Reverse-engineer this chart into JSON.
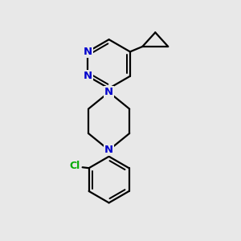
{
  "background_color": "#e8e8e8",
  "bond_color": "#000000",
  "N_color": "#0000cc",
  "Cl_color": "#00aa00",
  "line_width": 1.6,
  "figsize": [
    3.0,
    3.0
  ],
  "dpi": 100,
  "xlim": [
    0.18,
    0.82
  ],
  "ylim": [
    0.05,
    0.97
  ]
}
